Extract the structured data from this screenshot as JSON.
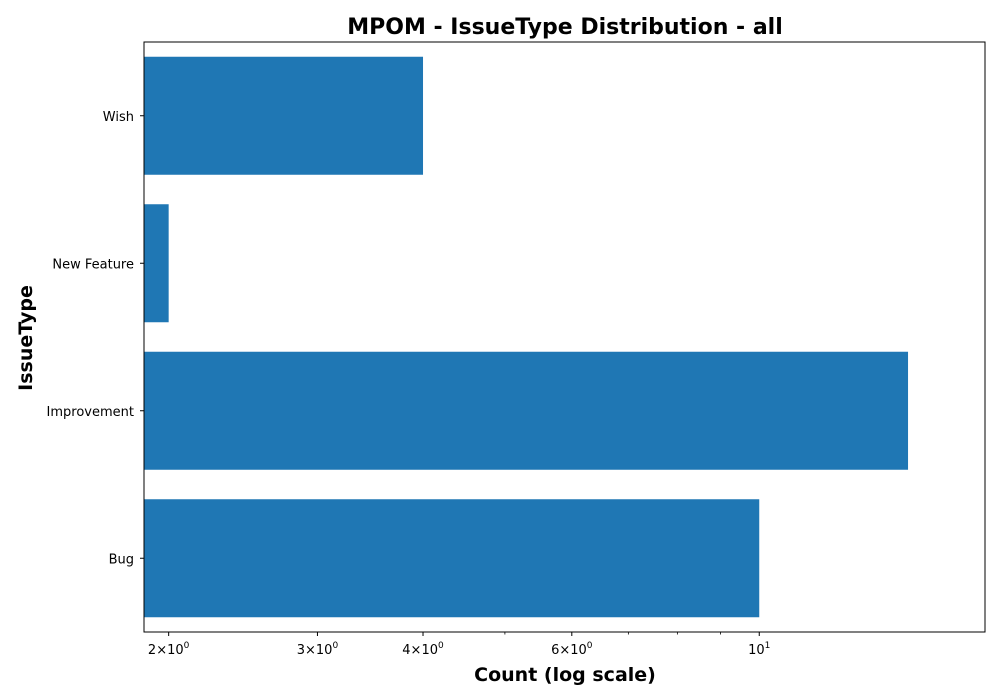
{
  "chart_data": {
    "type": "bar",
    "orientation": "horizontal",
    "title": "MPOM - IssueType Distribution - all",
    "xlabel": "Count (log scale)",
    "ylabel": "IssueType",
    "x_scale": "log",
    "xlim": [
      1.87,
      18.5
    ],
    "categories": [
      "Bug",
      "Improvement",
      "New Feature",
      "Wish"
    ],
    "values": [
      10,
      15,
      2,
      4
    ],
    "bar_color": "#1f77b4",
    "grid": false,
    "legend": "none",
    "x_ticks": [
      {
        "value": 2,
        "base": "2×10",
        "exp": "0"
      },
      {
        "value": 3,
        "base": "3×10",
        "exp": "0"
      },
      {
        "value": 4,
        "base": "4×10",
        "exp": "0"
      },
      {
        "value": 6,
        "base": "6×10",
        "exp": "0"
      },
      {
        "value": 10,
        "base": "10",
        "exp": "1"
      }
    ],
    "x_minor_ticks": [
      5,
      7,
      8,
      9
    ]
  }
}
